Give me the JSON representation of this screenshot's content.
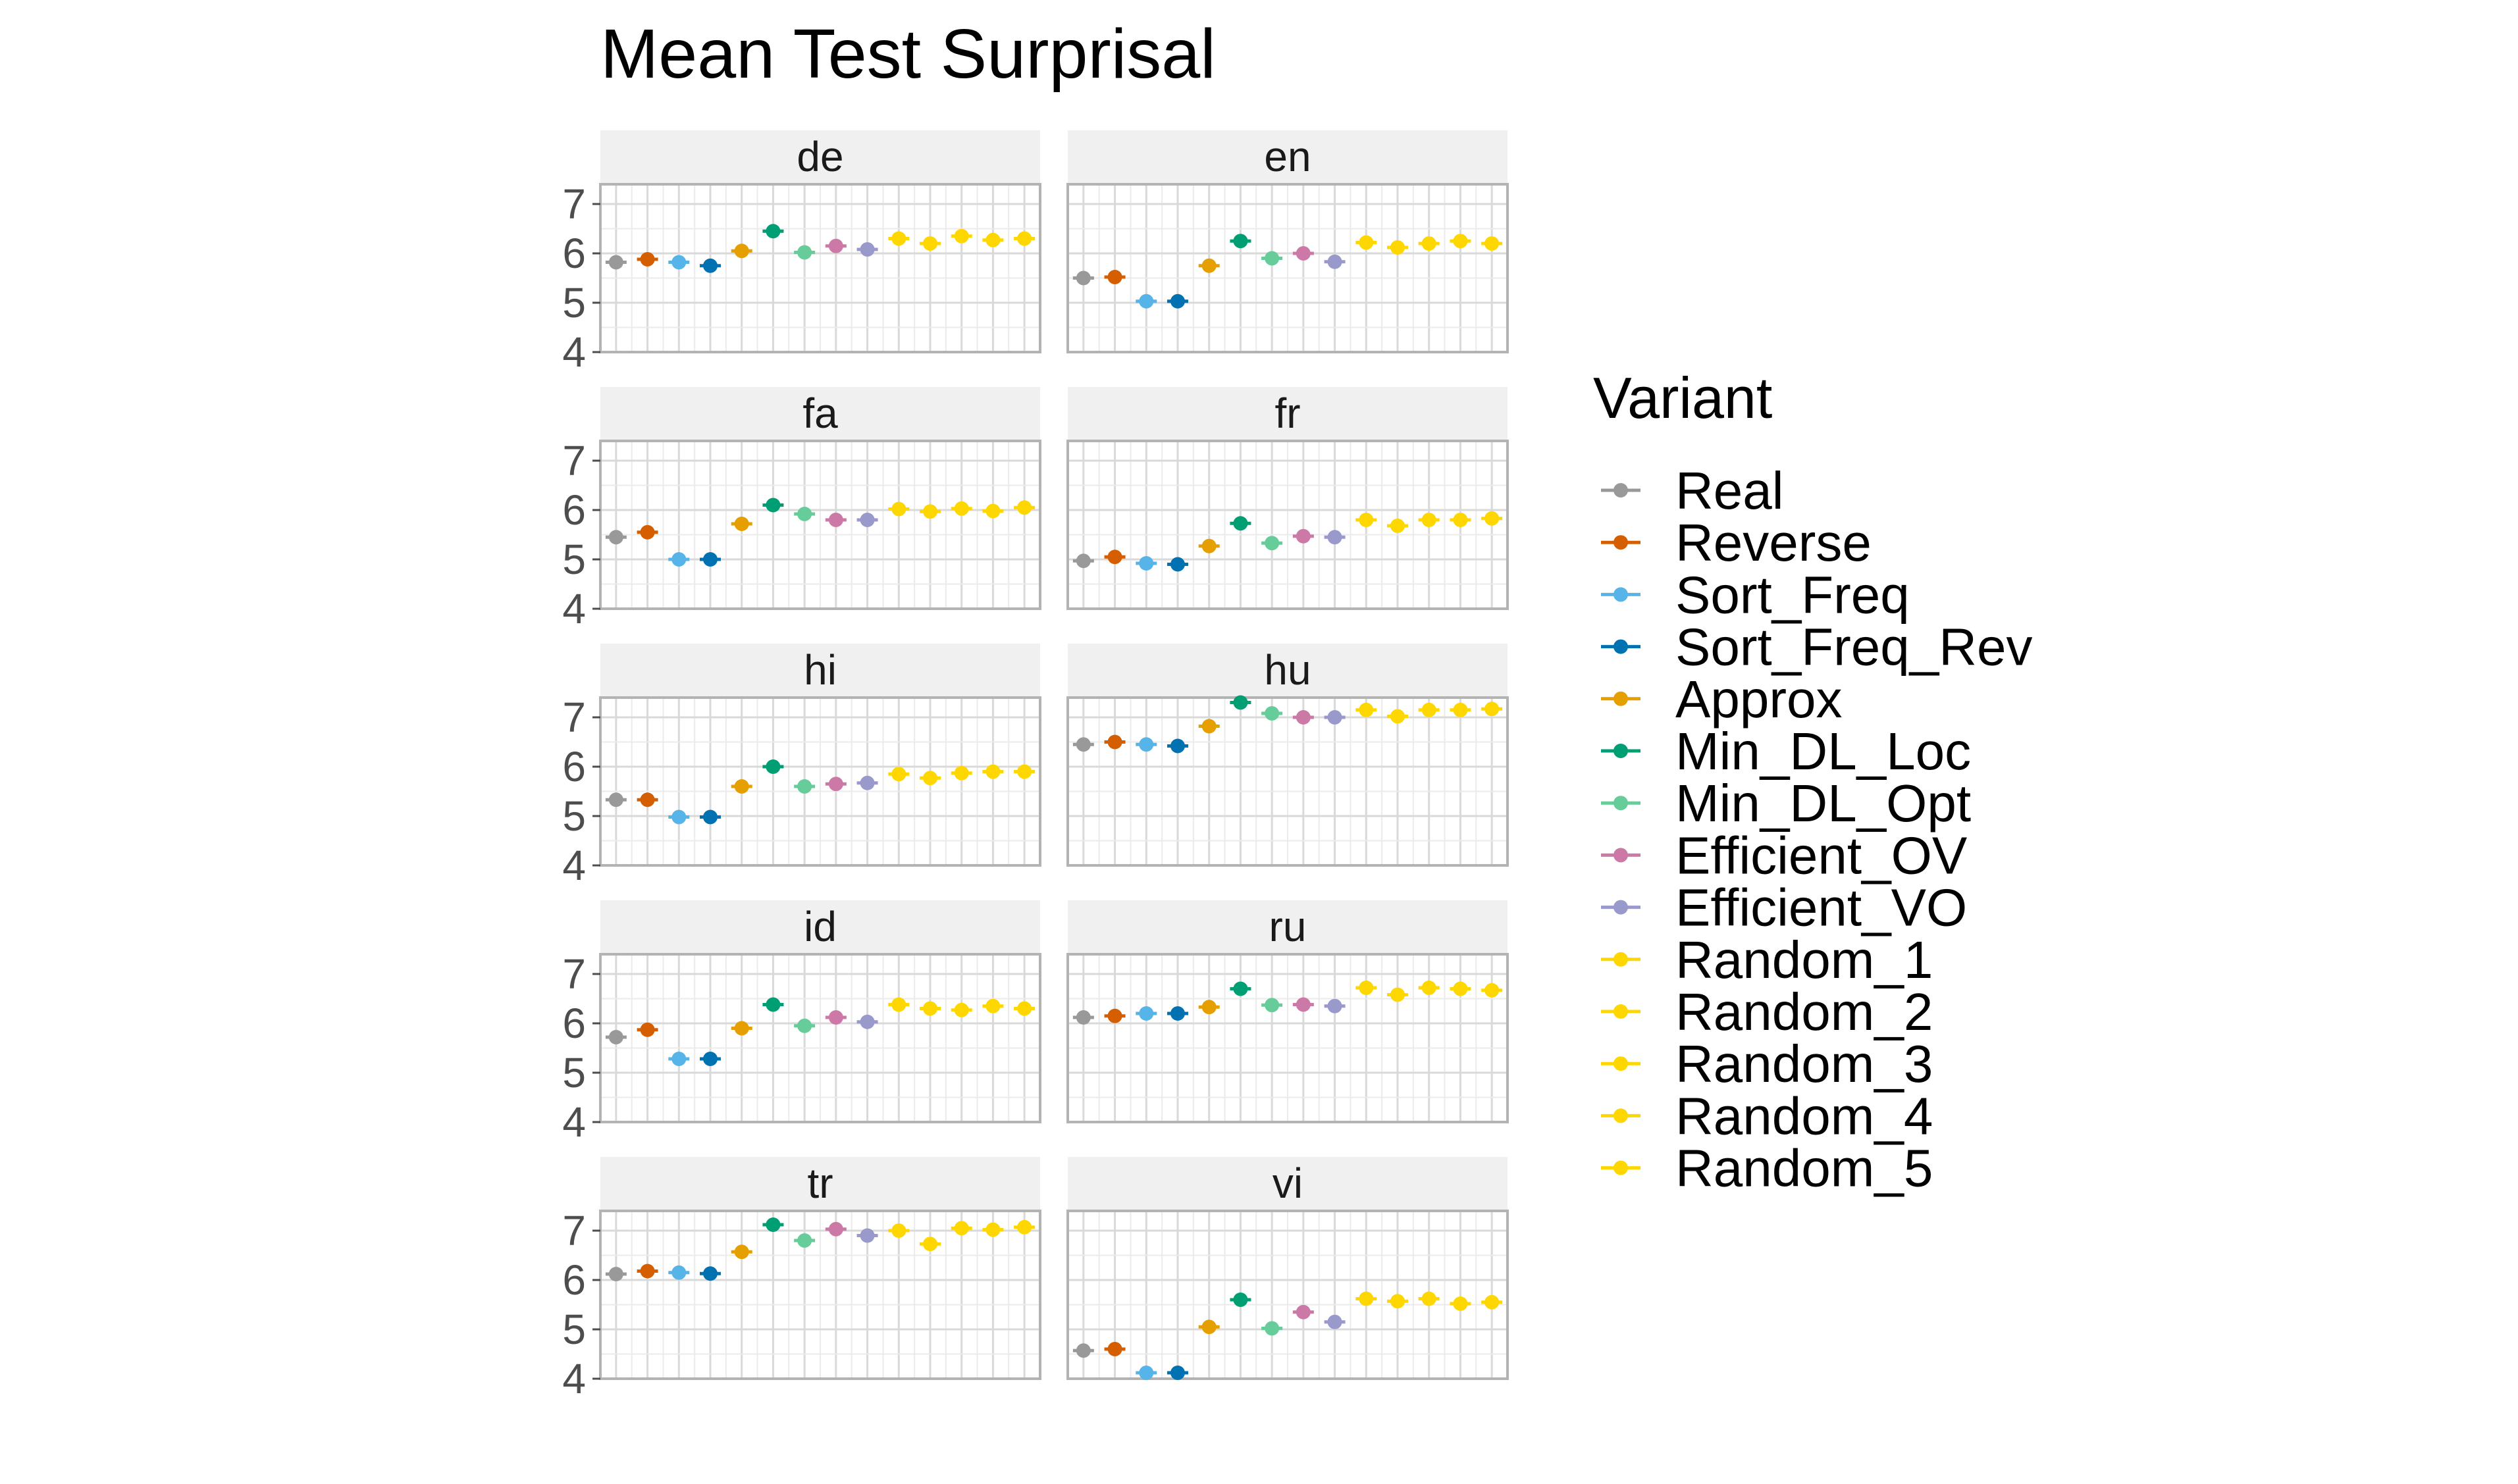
{
  "chart_data": {
    "type": "scatter",
    "title": "Mean Test Surprisal",
    "legend_title": "Variant",
    "legend_position": "right",
    "grid": true,
    "ylim": [
      4,
      7.4
    ],
    "y_ticks": [
      "4",
      "5",
      "6",
      "7"
    ],
    "variants": [
      {
        "name": "Real",
        "color": "#999999"
      },
      {
        "name": "Reverse",
        "color": "#D55E00"
      },
      {
        "name": "Sort_Freq",
        "color": "#56B4E9"
      },
      {
        "name": "Sort_Freq_Rev",
        "color": "#0072B2"
      },
      {
        "name": "Approx",
        "color": "#E69F00"
      },
      {
        "name": "Min_DL_Loc",
        "color": "#009E73"
      },
      {
        "name": "Min_DL_Opt",
        "color": "#66CC99"
      },
      {
        "name": "Efficient_OV",
        "color": "#CC79A7"
      },
      {
        "name": "Efficient_VO",
        "color": "#9999CC"
      },
      {
        "name": "Random_1",
        "color": "#FFD700"
      },
      {
        "name": "Random_2",
        "color": "#FFD700"
      },
      {
        "name": "Random_3",
        "color": "#FFD700"
      },
      {
        "name": "Random_4",
        "color": "#FFD700"
      },
      {
        "name": "Random_5",
        "color": "#FFD700"
      }
    ],
    "facets": [
      {
        "label": "de",
        "values": [
          5.82,
          5.88,
          5.82,
          5.75,
          6.05,
          6.45,
          6.02,
          6.15,
          6.08,
          6.3,
          6.2,
          6.35,
          6.27,
          6.3
        ]
      },
      {
        "label": "en",
        "values": [
          5.5,
          5.52,
          5.03,
          5.03,
          5.75,
          6.25,
          5.9,
          6.0,
          5.83,
          6.22,
          6.12,
          6.2,
          6.25,
          6.2
        ]
      },
      {
        "label": "fa",
        "values": [
          5.45,
          5.55,
          5.0,
          5.0,
          5.72,
          6.1,
          5.92,
          5.8,
          5.8,
          6.02,
          5.97,
          6.03,
          5.98,
          6.05
        ]
      },
      {
        "label": "fr",
        "values": [
          4.97,
          5.05,
          4.92,
          4.9,
          5.27,
          5.73,
          5.33,
          5.47,
          5.45,
          5.8,
          5.68,
          5.8,
          5.8,
          5.83
        ]
      },
      {
        "label": "hi",
        "values": [
          5.33,
          5.33,
          4.98,
          4.98,
          5.6,
          6.0,
          5.6,
          5.65,
          5.67,
          5.85,
          5.77,
          5.87,
          5.9,
          5.9
        ]
      },
      {
        "label": "hu",
        "values": [
          6.45,
          6.5,
          6.45,
          6.42,
          6.82,
          7.3,
          7.08,
          7.0,
          7.0,
          7.15,
          7.02,
          7.15,
          7.15,
          7.17
        ]
      },
      {
        "label": "id",
        "values": [
          5.72,
          5.87,
          5.28,
          5.28,
          5.9,
          6.38,
          5.95,
          6.12,
          6.03,
          6.38,
          6.3,
          6.27,
          6.35,
          6.3
        ]
      },
      {
        "label": "ru",
        "values": [
          6.12,
          6.15,
          6.2,
          6.2,
          6.33,
          6.7,
          6.37,
          6.38,
          6.35,
          6.72,
          6.58,
          6.72,
          6.7,
          6.67
        ]
      },
      {
        "label": "tr",
        "values": [
          6.12,
          6.18,
          6.15,
          6.13,
          6.57,
          7.12,
          6.8,
          7.03,
          6.9,
          7.0,
          6.73,
          7.05,
          7.02,
          7.07
        ]
      },
      {
        "label": "vi",
        "values": [
          4.57,
          4.6,
          4.12,
          4.12,
          5.05,
          5.6,
          5.02,
          5.35,
          5.15,
          5.62,
          5.57,
          5.62,
          5.52,
          5.55
        ]
      }
    ]
  }
}
